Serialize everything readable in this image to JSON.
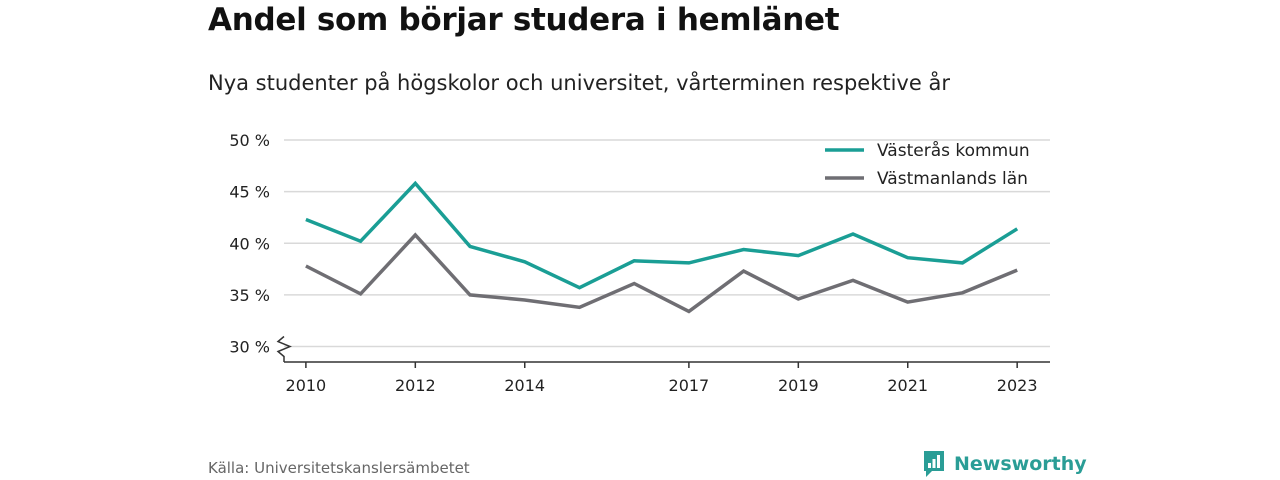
{
  "title": "Andel som börjar studera i hemlänet",
  "subtitle": "Nya studenter på högskolor och universitet, vårterminen respektive år",
  "source": "Källa: Universitetskanslersämbetet",
  "brand": {
    "name": "Newsworthy",
    "icon": "newsworthy-logo-icon",
    "color": "#2a9d96"
  },
  "chart_data": {
    "type": "line",
    "x": [
      2010,
      2011,
      2012,
      2013,
      2014,
      2015,
      2016,
      2017,
      2018,
      2019,
      2020,
      2021,
      2022,
      2023
    ],
    "xticks": [
      2010,
      2012,
      2014,
      2017,
      2019,
      2021,
      2023
    ],
    "xlim": [
      2009.6,
      2023.6
    ],
    "yticks": [
      30,
      35,
      40,
      45,
      50
    ],
    "ytick_labels": [
      "30 %",
      "35 %",
      "40 %",
      "45 %",
      "50 %"
    ],
    "ylim": [
      28.5,
      50
    ],
    "y_axis_break": true,
    "grid": true,
    "legend_position": "top-right",
    "series": [
      {
        "name": "Västerås kommun",
        "color": "#1a9e95",
        "values": [
          42.3,
          40.2,
          45.8,
          39.7,
          38.2,
          35.7,
          38.3,
          38.1,
          39.4,
          38.8,
          40.9,
          38.6,
          38.1,
          41.4
        ]
      },
      {
        "name": "Västmanlands län",
        "color": "#6f6e73",
        "values": [
          37.8,
          35.1,
          40.8,
          35.0,
          34.5,
          33.8,
          36.1,
          33.4,
          37.3,
          34.6,
          36.4,
          34.3,
          35.2,
          37.4
        ]
      }
    ]
  }
}
